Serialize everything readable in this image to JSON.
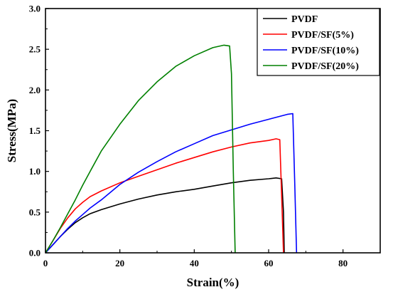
{
  "chart_data": {
    "type": "line",
    "xlabel": "Strain(%)",
    "ylabel": "Stress(MPa)",
    "xlim": [
      0,
      90
    ],
    "ylim": [
      0,
      3.0
    ],
    "xticks": [
      0,
      20,
      40,
      60,
      80
    ],
    "xtick_labels": [
      "0",
      "20",
      "40",
      "60",
      "80"
    ],
    "yticks": [
      0,
      0.5,
      1.0,
      1.5,
      2.0,
      2.5,
      3.0
    ],
    "ytick_labels": [
      "0.0",
      "0.5",
      "1.0",
      "1.5",
      "2.0",
      "2.5",
      "3.0"
    ],
    "grid": false,
    "legend_position": "top-right",
    "series": [
      {
        "name": "PVDF",
        "color": "#000000",
        "x": [
          0,
          2,
          4,
          6,
          8,
          10,
          12,
          15,
          20,
          25,
          30,
          35,
          40,
          45,
          50,
          55,
          60,
          62,
          63.5,
          64,
          64.2
        ],
        "y": [
          0,
          0.1,
          0.2,
          0.29,
          0.37,
          0.43,
          0.48,
          0.53,
          0.6,
          0.66,
          0.71,
          0.75,
          0.78,
          0.82,
          0.86,
          0.89,
          0.91,
          0.92,
          0.91,
          0.5,
          0
        ]
      },
      {
        "name": "PVDF/SF(5%)",
        "color": "#ff0000",
        "x": [
          0,
          2,
          4,
          6,
          8,
          10,
          12,
          15,
          20,
          25,
          30,
          35,
          40,
          45,
          50,
          55,
          60,
          62,
          63,
          63.5,
          64
        ],
        "y": [
          0,
          0.15,
          0.3,
          0.43,
          0.54,
          0.62,
          0.69,
          0.76,
          0.86,
          0.94,
          1.02,
          1.1,
          1.17,
          1.24,
          1.3,
          1.35,
          1.38,
          1.4,
          1.39,
          0.7,
          0
        ]
      },
      {
        "name": "PVDF/SF(10%)",
        "color": "#0000ff",
        "x": [
          0,
          2,
          4,
          6,
          8,
          10,
          12,
          15,
          20,
          25,
          30,
          35,
          40,
          45,
          50,
          55,
          60,
          65,
          66.5,
          67,
          67.5
        ],
        "y": [
          0,
          0.1,
          0.2,
          0.3,
          0.39,
          0.47,
          0.55,
          0.65,
          0.84,
          0.99,
          1.12,
          1.24,
          1.34,
          1.44,
          1.51,
          1.58,
          1.64,
          1.7,
          1.71,
          0.9,
          0
        ]
      },
      {
        "name": "PVDF/SF(20%)",
        "color": "#008000",
        "x": [
          0,
          2,
          4,
          6,
          8,
          10,
          12,
          15,
          20,
          25,
          30,
          35,
          40,
          45,
          48,
          49.5,
          50,
          50.5,
          51
        ],
        "y": [
          0,
          0.15,
          0.31,
          0.48,
          0.65,
          0.83,
          1.0,
          1.25,
          1.58,
          1.87,
          2.1,
          2.29,
          2.42,
          2.52,
          2.55,
          2.54,
          2.2,
          1.0,
          0
        ]
      }
    ]
  }
}
